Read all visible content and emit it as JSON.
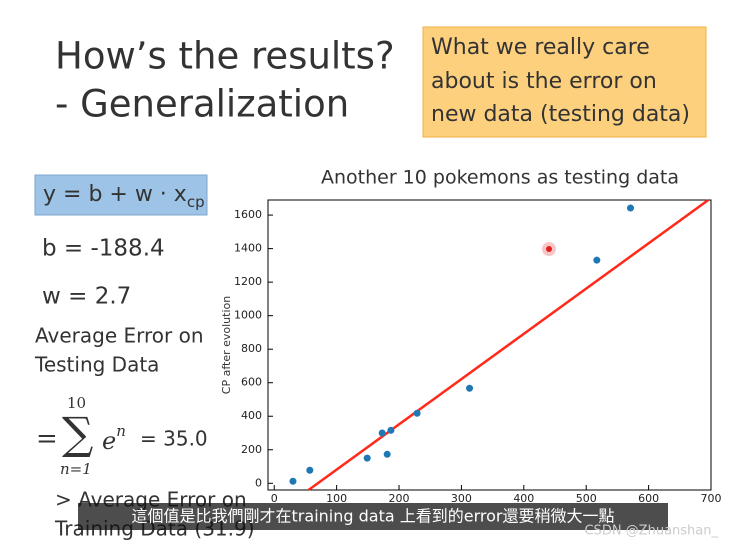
{
  "slide": {
    "title_line1": "How’s the results?",
    "title_line2": "- Generalization",
    "note_lines": [
      "What we really care",
      "about is the error on",
      "new data (testing data)"
    ],
    "formula_main": "y = b + w · x",
    "formula_sub": "cp",
    "b_text": "b = -188.4",
    "w_text": "w = 2.7",
    "avg_lines": [
      "Average Error on",
      "Testing Data"
    ],
    "sum_eq": "=",
    "sum_top": "10",
    "sum_symbol": "∑",
    "sum_bottom": "n=1",
    "sum_term": "e",
    "sum_exp": "n",
    "sum_result": "= 35.0",
    "compare_lines": [
      "> Average Error on",
      "Training Data (31.9)"
    ],
    "caption": "這個值是比我們剛才在training data 上看到的error還要稍微大一點",
    "watermark": "CSDN @Zhuanshan_"
  },
  "chart_data": {
    "type": "scatter",
    "title": "Another 10 pokemons as testing data",
    "y_label": "CP after evolution",
    "x": [
      30,
      57,
      149,
      173,
      181,
      187,
      229,
      313,
      517,
      571
    ],
    "values": [
      12,
      78,
      150,
      300,
      173,
      316,
      418,
      567,
      1331,
      1642
    ],
    "color": "#1f77b4",
    "line": {
      "b": -188.4,
      "w": 2.7,
      "color": "#ff2a1a"
    },
    "xlim": [
      -10,
      700
    ],
    "ylim": [
      -40,
      1690
    ],
    "xticks": [
      0,
      100,
      200,
      300,
      400,
      500,
      600,
      700
    ],
    "yticks": [
      0,
      200,
      400,
      600,
      800,
      1000,
      1200,
      1400,
      1600
    ]
  }
}
